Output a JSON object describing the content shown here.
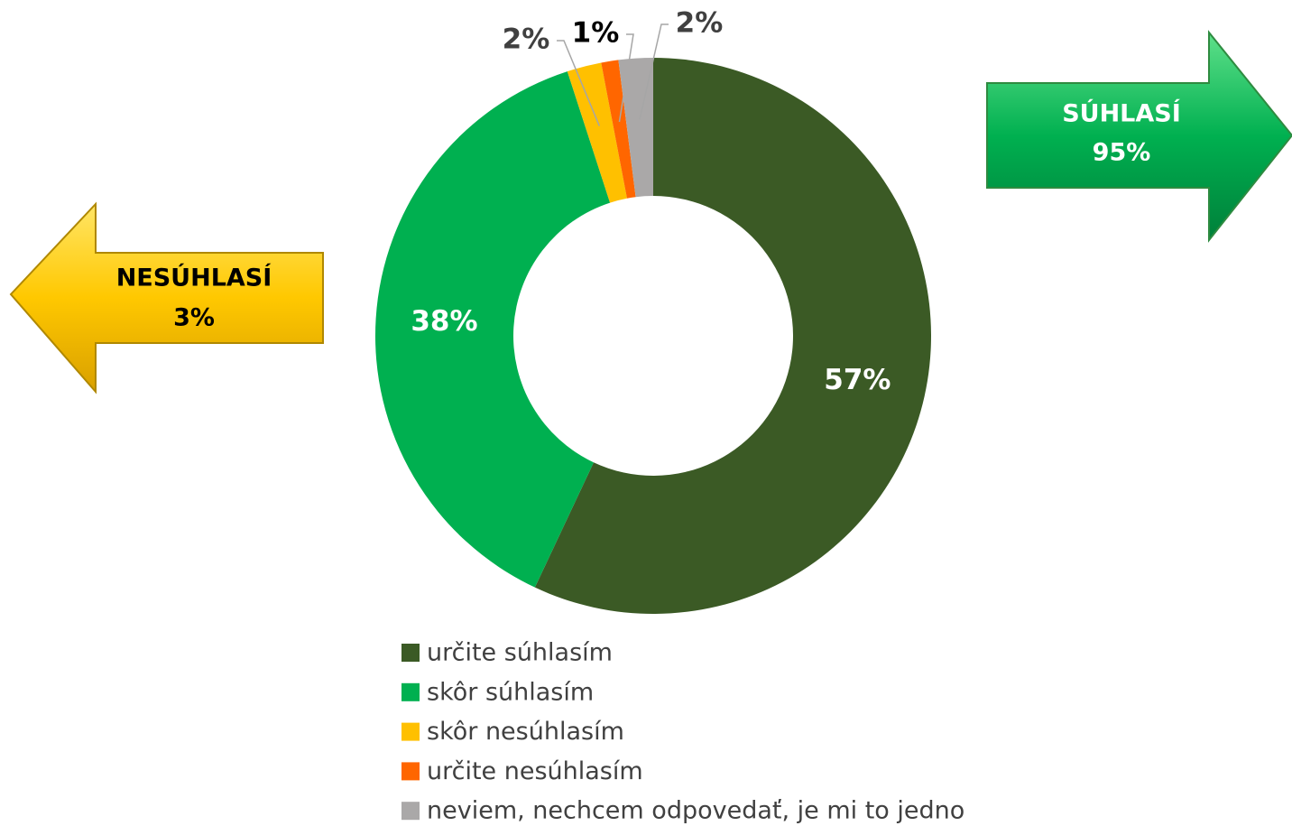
{
  "chart_data": {
    "type": "donut",
    "categories": [
      "určite súhlasím",
      "skôr súhlasím",
      "skôr nesúhlasím",
      "určite nesúhlasím",
      "neviem, nechcem odpovedať, je mi to jedno"
    ],
    "values": [
      57,
      38,
      2,
      1,
      2
    ],
    "value_labels": [
      "57%",
      "38%",
      "2%",
      "1%",
      "2%"
    ],
    "colors": [
      "#3b5a25",
      "#00b050",
      "#ffc000",
      "#ff6600",
      "#aaa8a8"
    ],
    "legend": "bottom",
    "annotations": [
      {
        "lines": [
          "SÚHLASÍ",
          "95%"
        ],
        "color": "#00b050"
      },
      {
        "lines": [
          "NESÚHLASÍ",
          "3%"
        ],
        "color": "#ffc000"
      }
    ]
  }
}
